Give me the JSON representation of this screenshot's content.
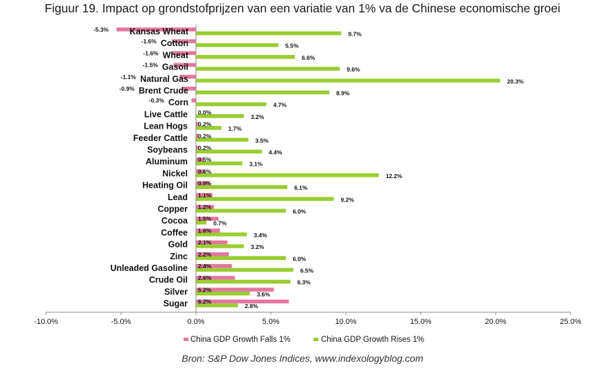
{
  "title": "Figuur 19. Impact op grondstofprijzen van een variatie van 1% va de Chinese economische groei",
  "source": "Bron: S&P Dow Jones Indices, www.indexologyblog.com",
  "colors": {
    "falls": "#e3779f",
    "rises": "#9acd32"
  },
  "chart_data": {
    "type": "bar",
    "orientation": "horizontal",
    "categories": [
      "Kansas Wheat",
      "Cotton",
      "Wheat",
      "Gasoil",
      "Natural Gas",
      "Brent Crude",
      "Corn",
      "Live Cattle",
      "Lean Hogs",
      "Feeder Cattle",
      "Soybeans",
      "Aluminum",
      "Nickel",
      "Heating Oil",
      "Lead",
      "Copper",
      "Cocoa",
      "Coffee",
      "Gold",
      "Zinc",
      "Unleaded Gasoline",
      "Crude Oil",
      "Silver",
      "Sugar"
    ],
    "series": [
      {
        "name": "China GDP Growth Falls 1%",
        "values": [
          -5.3,
          -1.6,
          -1.6,
          -1.5,
          -1.1,
          -0.9,
          -0.3,
          0.0,
          0.2,
          0.2,
          0.2,
          0.5,
          0.6,
          0.9,
          1.1,
          1.2,
          1.5,
          1.6,
          2.1,
          2.2,
          2.4,
          2.6,
          5.2,
          6.2
        ],
        "labels": [
          "-5.3%",
          "-1.6%",
          "-1.6%",
          "-1.5%",
          "-1.1%",
          "-0.9%",
          "-0.3%",
          "0.0%",
          "0.2%",
          "0.2%",
          "0.2%",
          "0.5%",
          "0.6%",
          "0.9%",
          "1.1%",
          "1.2%",
          "1.5%",
          "1.6%",
          "2.1%",
          "2.2%",
          "2.4%",
          "2.6%",
          "5.2%",
          "6.2%"
        ]
      },
      {
        "name": "China GDP Growth Rises 1%",
        "values": [
          9.7,
          5.5,
          6.6,
          9.6,
          20.3,
          8.9,
          4.7,
          3.2,
          1.7,
          3.5,
          4.4,
          3.1,
          12.2,
          6.1,
          9.2,
          6.0,
          0.7,
          3.4,
          3.2,
          6.0,
          6.5,
          6.3,
          3.6,
          2.8
        ],
        "labels": [
          "9.7%",
          "5.5%",
          "6.6%",
          "9.6%",
          "20.3%",
          "8.9%",
          "4.7%",
          "3.2%",
          "1.7%",
          "3.5%",
          "4.4%",
          "3.1%",
          "12.2%",
          "6.1%",
          "9.2%",
          "6.0%",
          "0.7%",
          "3.4%",
          "3.2%",
          "6.0%",
          "6.5%",
          "6.3%",
          "3.6%",
          "2.8%"
        ]
      }
    ],
    "xlim": [
      -10,
      25
    ],
    "xticks": [
      -10,
      -5,
      0,
      5,
      10,
      15,
      20,
      25
    ],
    "xtick_labels": [
      "-10.0%",
      "-5.0%",
      "0.0%",
      "5.0%",
      "10.0%",
      "15.0%",
      "20.0%",
      "25.0%"
    ],
    "grid": false,
    "legend_position": "bottom"
  }
}
